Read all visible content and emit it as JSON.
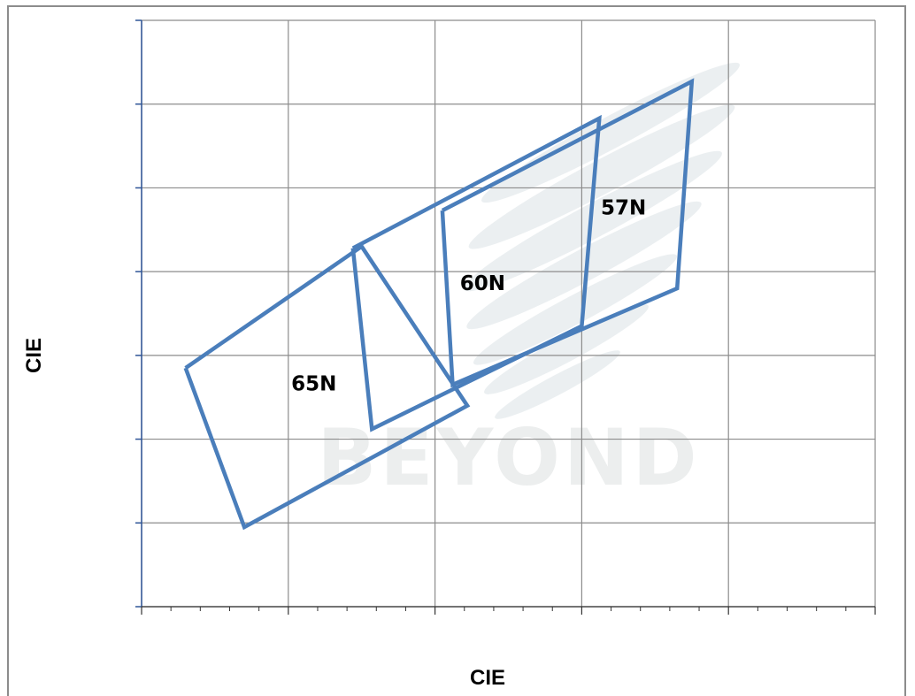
{
  "chart_data": {
    "type": "line",
    "xlabel": "CIE",
    "ylabel": "CIE",
    "xlim": [
      0,
      5
    ],
    "ylim": [
      0,
      7
    ],
    "x_major_ticks": [
      0,
      1,
      2,
      3,
      4,
      5
    ],
    "x_minor_per_major": 5,
    "y_major_ticks": [
      0,
      1,
      2,
      3,
      4,
      5,
      6,
      7
    ],
    "grid": true,
    "legend": "none",
    "series_color": "#4a7ebb",
    "watermark": "BEYOND",
    "series": [
      {
        "name": "65N",
        "label": "65N",
        "label_at": [
          1.02,
          2.58
        ],
        "points": [
          [
            0.3,
            2.85
          ],
          [
            1.5,
            4.3
          ],
          [
            2.22,
            2.4
          ],
          [
            0.7,
            0.95
          ],
          [
            0.3,
            2.85
          ]
        ]
      },
      {
        "name": "60N",
        "label": "60N",
        "label_at": [
          2.17,
          3.78
        ],
        "points": [
          [
            1.44,
            4.28
          ],
          [
            3.12,
            5.83
          ],
          [
            3.0,
            3.35
          ],
          [
            1.57,
            2.12
          ],
          [
            1.44,
            4.28
          ]
        ]
      },
      {
        "name": "57N",
        "label": "57N",
        "label_at": [
          3.13,
          4.68
        ],
        "points": [
          [
            2.05,
            4.73
          ],
          [
            3.75,
            6.27
          ],
          [
            3.65,
            3.8
          ],
          [
            2.12,
            2.65
          ],
          [
            2.05,
            4.73
          ]
        ]
      }
    ]
  }
}
